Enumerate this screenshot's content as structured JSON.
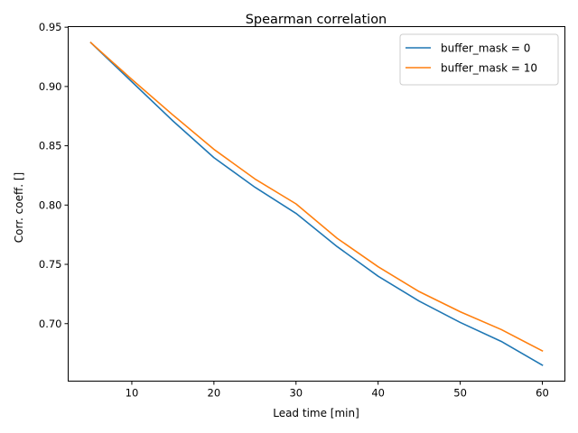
{
  "chart_data": {
    "type": "line",
    "title": "Spearman correlation",
    "xlabel": "Lead time [min]",
    "ylabel": "Corr. coeff. []",
    "xlim": [
      2.25,
      62.75
    ],
    "ylim": [
      0.6515,
      0.9505
    ],
    "xticks": [
      10,
      20,
      30,
      40,
      50,
      60
    ],
    "yticks": [
      0.7,
      0.75,
      0.8,
      0.85,
      0.9,
      0.95
    ],
    "xtick_labels": [
      "10",
      "20",
      "30",
      "40",
      "50",
      "60"
    ],
    "ytick_labels": [
      "0.70",
      "0.75",
      "0.80",
      "0.85",
      "0.90",
      "0.95"
    ],
    "grid": false,
    "legend_position": "top-right",
    "x": [
      5,
      10,
      15,
      20,
      25,
      30,
      35,
      40,
      45,
      50,
      55,
      60
    ],
    "series": [
      {
        "name": "buffer_mask = 0",
        "color": "#1f77b4",
        "values": [
          0.937,
          0.904,
          0.871,
          0.84,
          0.815,
          0.793,
          0.765,
          0.74,
          0.719,
          0.701,
          0.685,
          0.665
        ]
      },
      {
        "name": "buffer_mask = 10",
        "color": "#ff7f0e",
        "values": [
          0.937,
          0.906,
          0.876,
          0.847,
          0.822,
          0.801,
          0.772,
          0.748,
          0.727,
          0.71,
          0.695,
          0.677
        ]
      }
    ]
  }
}
